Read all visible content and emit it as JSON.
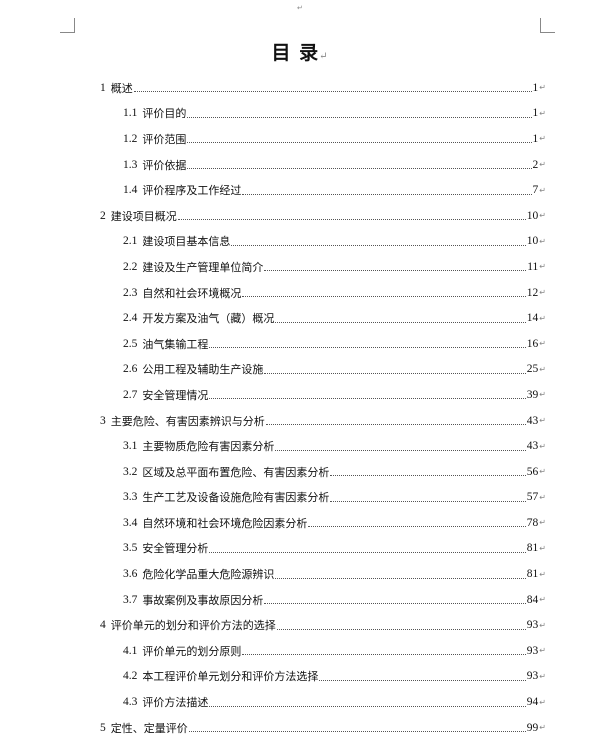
{
  "document": {
    "title": "目  录",
    "entries": [
      {
        "level": 1,
        "num": "1",
        "text": "概述",
        "page": "1"
      },
      {
        "level": 2,
        "num": "1.1",
        "text": "评价目的",
        "page": "1"
      },
      {
        "level": 2,
        "num": "1.2",
        "text": "评价范围",
        "page": "1"
      },
      {
        "level": 2,
        "num": "1.3",
        "text": "评价依据",
        "page": "2"
      },
      {
        "level": 2,
        "num": "1.4",
        "text": "评价程序及工作经过",
        "page": "7"
      },
      {
        "level": 1,
        "num": "2",
        "text": "建设项目概况",
        "page": "10"
      },
      {
        "level": 2,
        "num": "2.1",
        "text": "建设项目基本信息",
        "page": "10"
      },
      {
        "level": 2,
        "num": "2.2",
        "text": "建设及生产管理单位简介",
        "page": "11"
      },
      {
        "level": 2,
        "num": "2.3",
        "text": "自然和社会环境概况",
        "page": "12"
      },
      {
        "level": 2,
        "num": "2.4",
        "text": "开发方案及油气（藏）概况",
        "page": "14"
      },
      {
        "level": 2,
        "num": "2.5",
        "text": "油气集输工程",
        "page": "16"
      },
      {
        "level": 2,
        "num": "2.6",
        "text": "公用工程及辅助生产设施",
        "page": "25"
      },
      {
        "level": 2,
        "num": "2.7",
        "text": "安全管理情况",
        "page": "39"
      },
      {
        "level": 1,
        "num": "3",
        "text": "主要危险、有害因素辨识与分析",
        "page": "43"
      },
      {
        "level": 2,
        "num": "3.1",
        "text": "主要物质危险有害因素分析",
        "page": "43"
      },
      {
        "level": 2,
        "num": "3.2",
        "text": "区域及总平面布置危险、有害因素分析",
        "page": "56"
      },
      {
        "level": 2,
        "num": "3.3",
        "text": "生产工艺及设备设施危险有害因素分析",
        "page": "57"
      },
      {
        "level": 2,
        "num": "3.4",
        "text": "自然环境和社会环境危险因素分析",
        "page": "78"
      },
      {
        "level": 2,
        "num": "3.5",
        "text": "安全管理分析",
        "page": "81"
      },
      {
        "level": 2,
        "num": "3.6",
        "text": "危险化学品重大危险源辨识",
        "page": "81"
      },
      {
        "level": 2,
        "num": "3.7",
        "text": "事故案例及事故原因分析",
        "page": "84"
      },
      {
        "level": 1,
        "num": "4",
        "text": "评价单元的划分和评价方法的选择",
        "page": "93"
      },
      {
        "level": 2,
        "num": "4.1",
        "text": "评价单元的划分原则",
        "page": "93"
      },
      {
        "level": 2,
        "num": "4.2",
        "text": "本工程评价单元划分和评价方法选择",
        "page": "93"
      },
      {
        "level": 2,
        "num": "4.3",
        "text": "评价方法描述",
        "page": "94"
      },
      {
        "level": 1,
        "num": "5",
        "text": "定性、定量评价",
        "page": "99"
      }
    ]
  }
}
